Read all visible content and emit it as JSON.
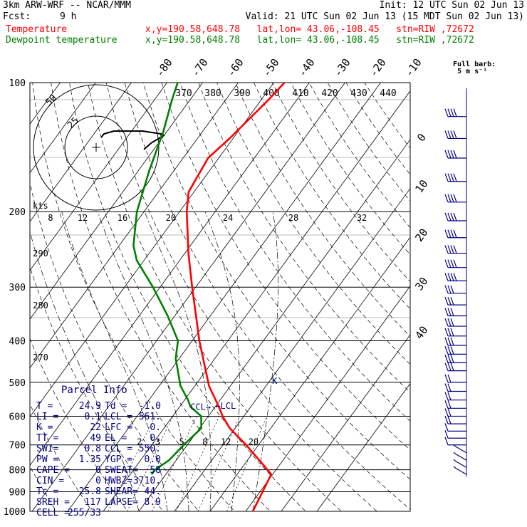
{
  "header": {
    "model": "3km ARW-WRF -- NCAR/MMM",
    "init": "Init: 12 UTC Sun 02 Jun 13",
    "fcst_label": "Fcst:",
    "fcst_value": "9 h",
    "valid": "Valid: 21 UTC Sun 02 Jun 13 (15 MDT Sun 02 Jun 13)"
  },
  "legend": [
    {
      "name": "Temperature",
      "color": "#ff0000",
      "info": "x,y=190.58,648.78   lat,lon= 43.06,-108.45   stn=RIW ,72672"
    },
    {
      "name": "Dewpoint temperature",
      "color": "#008000",
      "info": "x,y=190.58,648.78   lat,lon= 43.06,-108.45   stn=RIW ,72672"
    }
  ],
  "colors": {
    "temperature": "#ff0000",
    "dewpoint": "#008000",
    "wind": "#000080",
    "panel_text": "#000080",
    "grid": "#000000"
  },
  "chart_data": {
    "type": "line",
    "title": "",
    "xlabel": "",
    "ylabel": "",
    "y_scale": "log-pressure",
    "ylim": [
      1000,
      100
    ],
    "pressure_ticks": [
      100,
      200,
      300,
      400,
      500,
      600,
      700,
      800,
      900,
      1000
    ],
    "isotherm_labels": [
      -80,
      -70,
      -60,
      -50,
      -40,
      -30,
      -20,
      -10,
      0,
      10,
      20,
      30,
      40
    ],
    "theta_labels": [
      370,
      380,
      390,
      400,
      410,
      420,
      430,
      440
    ],
    "theta_left_labels": [
      290,
      280,
      270
    ],
    "mixing_ratio_labels": [
      "2",
      "3",
      "5",
      "8",
      "12",
      "20"
    ],
    "series": [
      {
        "name": "Temperature",
        "color": "#ff0000",
        "points": [
          [
            1000,
            32.0
          ],
          [
            820,
            29.6
          ],
          [
            780,
            25.5
          ],
          [
            700,
            16.5
          ],
          [
            640,
            8.5
          ],
          [
            600,
            4.0
          ],
          [
            570,
            1.0
          ],
          [
            510,
            -6.0
          ],
          [
            400,
            -18.0
          ],
          [
            300,
            -31.0
          ],
          [
            250,
            -39.0
          ],
          [
            200,
            -48.0
          ],
          [
            180,
            -51.5
          ],
          [
            150,
            -53.0
          ],
          [
            135,
            -51.0
          ],
          [
            110,
            -48.0
          ],
          [
            100,
            -47.0
          ]
        ]
      },
      {
        "name": "Dewpoint temperature",
        "color": "#008000",
        "points": [
          [
            820,
            -4.0
          ],
          [
            800,
            -4.0
          ],
          [
            760,
            -2.0
          ],
          [
            700,
            -1.0
          ],
          [
            640,
            0.5
          ],
          [
            600,
            -2.0
          ],
          [
            570,
            -7.0
          ],
          [
            550,
            -9.0
          ],
          [
            510,
            -14.0
          ],
          [
            440,
            -21.0
          ],
          [
            400,
            -24.0
          ],
          [
            350,
            -32.0
          ],
          [
            300,
            -42.0
          ],
          [
            260,
            -52.0
          ],
          [
            240,
            -56.0
          ],
          [
            200,
            -62.0
          ],
          [
            160,
            -67.0
          ],
          [
            130,
            -71.0
          ],
          [
            110,
            -75.0
          ],
          [
            100,
            -77.0
          ]
        ]
      }
    ],
    "lcl": {
      "label": "LCL",
      "pressure": 561,
      "temperature": -1.0
    },
    "ccl": {
      "label": "CCL",
      "pressure": 550,
      "temperature": -2.0
    },
    "hodograph": {
      "units_label": "kts",
      "ring_labels": [
        "25",
        "50"
      ],
      "tick_labels": [
        "8",
        "12",
        "16",
        "20",
        "24",
        "28",
        "32"
      ]
    },
    "barb_legend": {
      "line1": "Full barb:",
      "line2": "5 m s⁻¹"
    },
    "wind_barb_pressures": [
      120,
      135,
      150,
      170,
      190,
      210,
      230,
      250,
      270,
      290,
      310,
      330,
      350,
      370,
      390,
      410,
      430,
      450,
      470,
      500,
      525,
      550,
      575,
      600,
      625,
      650,
      675,
      700,
      730,
      760,
      790,
      820
    ]
  },
  "parcel_info": {
    "title": "Parcel Info",
    "rows": [
      [
        "T  =",
        "24.9",
        "Td =",
        "-1.0"
      ],
      [
        "LI =",
        "0.1",
        "LCL =",
        "561."
      ],
      [
        "K  =",
        "22",
        "LFC =",
        "0."
      ],
      [
        "TT =",
        "49",
        "EL  =",
        "0."
      ],
      [
        "SWI=",
        "0.8",
        "CCL =",
        "550."
      ],
      [
        "PW =",
        "1.35",
        "YGP =",
        "0.0"
      ],
      [
        "CAPE =",
        "0",
        "SWEAT=",
        "58"
      ],
      [
        "CIN  =",
        "0",
        "HWBZ=",
        "3710."
      ],
      [
        "Tc   =",
        "25.8",
        "SHEAR=",
        "44."
      ],
      [
        "SREH =",
        "117",
        "LAPSE=",
        "8.9"
      ],
      [
        "CELL =",
        "255/33",
        "",
        ""
      ]
    ]
  }
}
